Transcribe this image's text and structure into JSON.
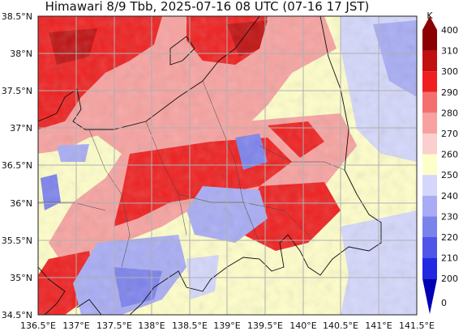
{
  "title": "Himawari 8/9 Tbb, 2025-07-16 08 UTC (07-16 17 JST)",
  "map": {
    "lat_labels": [
      "38.5°N",
      "38°N",
      "37.5°N",
      "37°N",
      "36.5°N",
      "36°N",
      "35.5°N",
      "35°N",
      "34.5°N"
    ],
    "lon_labels": [
      "136.5°E",
      "137°E",
      "137.5°E",
      "138°E",
      "138.5°E",
      "139°E",
      "139.5°E",
      "140°E",
      "140.5°E",
      "141°E",
      "141.5°E"
    ],
    "lat_range": [
      34.5,
      38.5
    ],
    "lon_range": [
      136.5,
      141.5
    ],
    "grid": true
  },
  "colorbar": {
    "unit": "K",
    "labels": [
      "400",
      "310",
      "300",
      "290",
      "280",
      "270",
      "260",
      "250",
      "240",
      "230",
      "220",
      "210",
      "200",
      "0"
    ],
    "colors": [
      "#8b0000",
      "#c01010",
      "#ef1f1f",
      "#f4706f",
      "#f7a2a0",
      "#fbcfcd",
      "#fefec9",
      "#d4d7fb",
      "#a8acf4",
      "#7c82ec",
      "#4f55e6",
      "#2228e0",
      "#0000b4"
    ]
  }
}
